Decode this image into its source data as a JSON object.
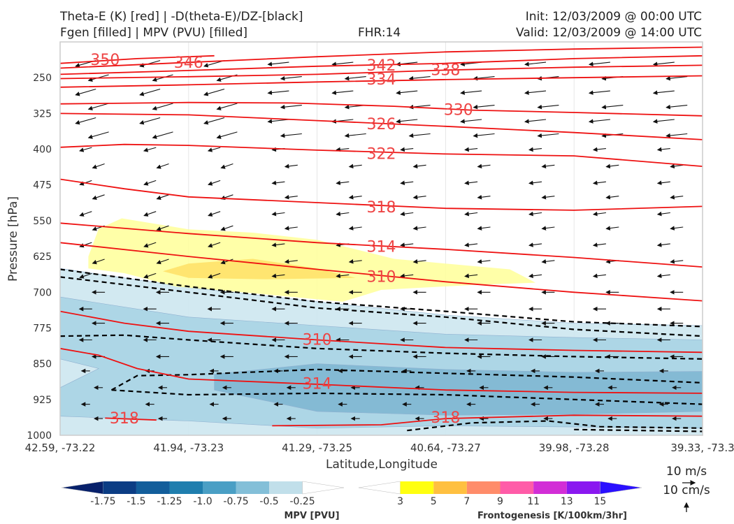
{
  "header": {
    "title_line1_left": "Theta-E (K) [red] | -D(theta-E)/DZ-[black]",
    "title_line2_left": "Fgen [filled] | MPV (PVU) [filled]",
    "title_line2_center": "FHR:14",
    "title_line1_right": "Init: 12/03/2009 @ 00:00 UTC",
    "title_line2_right": "Valid: 12/03/2009 @ 14:00 UTC"
  },
  "chart_data": {
    "type": "cross-section",
    "xlabel": "Latitude,Longitude",
    "ylabel": "Pressure [hPa]",
    "ylim": [
      1000,
      175
    ],
    "y_ticks": [
      250,
      325,
      400,
      475,
      550,
      625,
      700,
      775,
      850,
      925,
      1000
    ],
    "x_ticks": [
      "42.59, -73.22",
      "41.94, -73.23",
      "41.29, -73.25",
      "40.64, -73.27",
      "39.98, -73.28",
      "39.33, -73.3"
    ],
    "x_range": [
      0,
      5
    ],
    "theta_e_contours": [
      {
        "label": "350",
        "points": [
          [
            0.0,
            220
          ],
          [
            0.6,
            210
          ],
          [
            1.2,
            204
          ]
        ],
        "labels": [
          [
            0.35,
            213
          ]
        ]
      },
      {
        "label": "346",
        "points": [
          [
            0.0,
            230
          ],
          [
            1.0,
            218
          ],
          [
            2.0,
            206
          ],
          [
            3.0,
            196
          ],
          [
            4.0,
            190
          ],
          [
            5.0,
            186
          ]
        ],
        "labels": [
          [
            1.0,
            219
          ]
        ]
      },
      {
        "label": "342",
        "points": [
          [
            0.0,
            243
          ],
          [
            1.0,
            235
          ],
          [
            2.0,
            226
          ],
          [
            3.0,
            220
          ],
          [
            4.0,
            210
          ],
          [
            5.0,
            204
          ]
        ],
        "labels": [
          [
            2.5,
            225
          ]
        ]
      },
      {
        "label": "338",
        "points": [
          [
            0.0,
            252
          ],
          [
            1.0,
            248
          ],
          [
            2.0,
            243
          ],
          [
            3.0,
            234
          ],
          [
            4.0,
            228
          ],
          [
            5.0,
            224
          ]
        ],
        "labels": [
          [
            3.0,
            234
          ]
        ]
      },
      {
        "label": "334",
        "points": [
          [
            0.0,
            270
          ],
          [
            1.0,
            265
          ],
          [
            2.0,
            259
          ],
          [
            3.0,
            254
          ],
          [
            4.0,
            250
          ],
          [
            5.0,
            246
          ]
        ],
        "labels": [
          [
            2.5,
            254
          ]
        ]
      },
      {
        "label": "330",
        "points": [
          [
            0.0,
            305
          ],
          [
            1.0,
            302
          ],
          [
            1.8,
            303
          ],
          [
            2.6,
            310
          ],
          [
            3.2,
            318
          ],
          [
            4.0,
            323
          ],
          [
            5.0,
            330
          ]
        ],
        "labels": [
          [
            3.1,
            318
          ]
        ]
      },
      {
        "label": "326",
        "points": [
          [
            0.0,
            325
          ],
          [
            1.0,
            328
          ],
          [
            2.0,
            340
          ],
          [
            3.0,
            352
          ],
          [
            4.0,
            365
          ],
          [
            5.0,
            380
          ]
        ],
        "labels": [
          [
            2.5,
            348
          ]
        ]
      },
      {
        "label": "322",
        "points": [
          [
            0.0,
            396
          ],
          [
            0.5,
            390
          ],
          [
            1.0,
            392
          ],
          [
            2.0,
            402
          ],
          [
            3.0,
            410
          ],
          [
            4.0,
            414
          ],
          [
            5.0,
            436
          ]
        ],
        "labels": [
          [
            2.5,
            410
          ]
        ]
      },
      {
        "label": "318",
        "points": [
          [
            0.0,
            463
          ],
          [
            0.5,
            483
          ],
          [
            1.0,
            500
          ],
          [
            2.0,
            512
          ],
          [
            3.0,
            524
          ],
          [
            4.0,
            528
          ],
          [
            5.0,
            520
          ]
        ],
        "labels": [
          [
            2.5,
            522
          ]
        ]
      },
      {
        "label": "314",
        "points": [
          [
            0.0,
            555
          ],
          [
            1.0,
            577
          ],
          [
            2.0,
            596
          ],
          [
            3.0,
            610
          ],
          [
            4.0,
            627
          ],
          [
            5.0,
            647
          ]
        ],
        "labels": [
          [
            2.5,
            605
          ]
        ]
      },
      {
        "label": "310",
        "points": [
          [
            0.0,
            596
          ],
          [
            1.0,
            625
          ],
          [
            2.0,
            652
          ],
          [
            3.0,
            678
          ],
          [
            4.0,
            700
          ],
          [
            5.0,
            718
          ]
        ],
        "labels": [
          [
            2.5,
            668
          ]
        ]
      },
      {
        "label": "310",
        "points": [
          [
            0.0,
            740
          ],
          [
            0.5,
            765
          ],
          [
            1.0,
            782
          ],
          [
            2.0,
            800
          ],
          [
            3.0,
            816
          ],
          [
            4.0,
            822
          ],
          [
            5.0,
            826
          ]
        ],
        "labels": [
          [
            2.0,
            800
          ]
        ]
      },
      {
        "label": "314",
        "points": [
          [
            0.0,
            818
          ],
          [
            0.3,
            832
          ],
          [
            0.6,
            860
          ],
          [
            1.0,
            882
          ],
          [
            2.0,
            893
          ],
          [
            3.0,
            905
          ],
          [
            4.0,
            910
          ],
          [
            5.0,
            912
          ]
        ],
        "labels": [
          [
            2.0,
            892
          ]
        ]
      },
      {
        "label": "318",
        "points": [
          [
            0.35,
            964
          ],
          [
            0.75,
            968
          ]
        ],
        "labels": [
          [
            0.5,
            965
          ]
        ]
      },
      {
        "label": "318",
        "points": [
          [
            1.65,
            980
          ],
          [
            2.5,
            978
          ],
          [
            3.0,
            965
          ],
          [
            4.0,
            958
          ],
          [
            5.0,
            960
          ]
        ],
        "labels": [
          [
            3.0,
            963
          ]
        ]
      }
    ],
    "stability_contours_dashed": [
      {
        "points": [
          [
            0.0,
            652
          ],
          [
            1.0,
            688
          ],
          [
            2.0,
            720
          ],
          [
            3.0,
            740
          ],
          [
            4.0,
            762
          ],
          [
            5.0,
            772
          ]
        ]
      },
      {
        "points": [
          [
            0.0,
            668
          ],
          [
            1.0,
            700
          ],
          [
            2.0,
            733
          ],
          [
            3.0,
            752
          ],
          [
            4.0,
            778
          ],
          [
            5.0,
            792
          ]
        ]
      },
      {
        "points": [
          [
            0.0,
            792
          ],
          [
            0.5,
            790
          ],
          [
            1.0,
            800
          ],
          [
            2.0,
            818
          ],
          [
            3.0,
            828
          ],
          [
            4.0,
            835
          ],
          [
            5.0,
            840
          ]
        ]
      },
      {
        "points": [
          [
            0.4,
            905
          ],
          [
            0.6,
            875
          ],
          [
            1.0,
            873
          ],
          [
            2.0,
            862
          ],
          [
            3.0,
            870
          ],
          [
            4.0,
            878
          ],
          [
            5.0,
            890
          ]
        ]
      },
      {
        "points": [
          [
            0.4,
            905
          ],
          [
            1.0,
            915
          ],
          [
            2.0,
            912
          ],
          [
            3.0,
            915
          ],
          [
            4.0,
            925
          ],
          [
            5.0,
            935
          ]
        ]
      },
      {
        "points": [
          [
            2.7,
            990
          ],
          [
            3.2,
            974
          ],
          [
            3.8,
            970
          ],
          [
            4.2,
            982
          ],
          [
            5.0,
            985
          ]
        ]
      },
      {
        "points": [
          [
            4.0,
            988
          ],
          [
            5.0,
            992
          ]
        ]
      }
    ],
    "fgen_filled": [
      {
        "level": "3-5",
        "color": "#ffff99",
        "points": [
          [
            0.22,
            625
          ],
          [
            0.3,
            567
          ],
          [
            0.48,
            545
          ],
          [
            1.0,
            568
          ],
          [
            1.5,
            575
          ],
          [
            2.0,
            590
          ],
          [
            2.6,
            630
          ],
          [
            3.0,
            640
          ],
          [
            3.5,
            652
          ],
          [
            3.7,
            680
          ],
          [
            3.2,
            685
          ],
          [
            2.5,
            695
          ],
          [
            2.2,
            720
          ],
          [
            1.5,
            702
          ],
          [
            0.9,
            688
          ],
          [
            0.5,
            660
          ],
          [
            0.22,
            650
          ]
        ]
      },
      {
        "level": "5-7",
        "color": "#ffe066",
        "points": [
          [
            0.8,
            656
          ],
          [
            1.0,
            640
          ],
          [
            1.5,
            630
          ],
          [
            2.0,
            650
          ],
          [
            2.3,
            670
          ],
          [
            1.6,
            673
          ],
          [
            1.0,
            670
          ]
        ]
      }
    ],
    "mpv_filled": [
      {
        "level": "-0.25",
        "color": "#cde7f0",
        "points": [
          [
            0.0,
            650
          ],
          [
            1.0,
            690
          ],
          [
            2.0,
            720
          ],
          [
            3.0,
            748
          ],
          [
            4.0,
            765
          ],
          [
            5.0,
            770
          ],
          [
            5.0,
            1000
          ],
          [
            0.0,
            1000
          ]
        ]
      },
      {
        "level": "-0.5",
        "color": "#a8d4e4",
        "points": [
          [
            0.0,
            710
          ],
          [
            1.0,
            752
          ],
          [
            2.0,
            770
          ],
          [
            3.0,
            788
          ],
          [
            4.0,
            795
          ],
          [
            5.0,
            800
          ],
          [
            5.0,
            985
          ],
          [
            3.0,
            980
          ],
          [
            2.0,
            985
          ],
          [
            1.0,
            970
          ],
          [
            0.0,
            960
          ],
          [
            0.0,
            900
          ],
          [
            0.3,
            860
          ],
          [
            0.0,
            840
          ]
        ]
      },
      {
        "level": "-0.75",
        "color": "#7fb7d2",
        "points": [
          [
            1.2,
            872
          ],
          [
            2.0,
            850
          ],
          [
            3.0,
            862
          ],
          [
            4.0,
            868
          ],
          [
            5.0,
            866
          ],
          [
            5.0,
            950
          ],
          [
            4.0,
            956
          ],
          [
            3.0,
            958
          ],
          [
            2.0,
            950
          ],
          [
            1.2,
            905
          ]
        ]
      }
    ],
    "wind_vectors": "uniform grid; dominant easterly flow (arrows pointing left)",
    "colorbar_mpv": {
      "label": "MPV [PVU]",
      "ticks": [
        "-1.75",
        "-1.5",
        "-1.25",
        "-1.0",
        "-0.75",
        "-0.5",
        "-0.25"
      ],
      "colors": [
        "#08216b",
        "#0c3d84",
        "#135e9b",
        "#1f7eae",
        "#4a9fc5",
        "#83bfd8",
        "#c1dfea",
        "#ffffff"
      ]
    },
    "colorbar_fgen": {
      "label": "Frontogenesis [K/100km/3hr]",
      "ticks": [
        "3",
        "5",
        "7",
        "9",
        "11",
        "13",
        "15"
      ],
      "colors": [
        "#ffffff",
        "#ffff10",
        "#ffc040",
        "#ff8c6a",
        "#ff5ca8",
        "#d22ed6",
        "#8a18f0",
        "#2a10ff"
      ]
    },
    "reference_vector": {
      "horizontal": "10 m/s",
      "vertical": "10 cm/s"
    }
  }
}
